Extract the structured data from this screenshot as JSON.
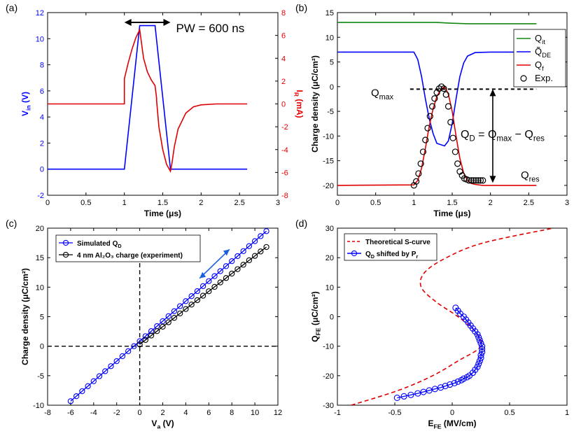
{
  "chart_data": [
    {
      "panel": "(a)",
      "type": "line",
      "xlabel": "Time (μs)",
      "ylabel": "V_in (V)",
      "ylabel_right": "I_R (mA)",
      "xlim": [
        0,
        3
      ],
      "ylim": [
        -2,
        12
      ],
      "ylim_right": [
        -8,
        8
      ],
      "xticks": [
        0,
        0.5,
        1,
        1.5,
        2,
        2.5,
        3
      ],
      "yticks": [
        -2,
        0,
        2,
        4,
        6,
        8,
        10,
        12
      ],
      "yticks_right": [
        -8,
        -6,
        -4,
        -2,
        0,
        2,
        4,
        6,
        8
      ],
      "annotations": [
        {
          "text": "PW = 600 ns"
        }
      ],
      "colors": {
        "left": "#0000ff",
        "right": "#e00000"
      },
      "series": [
        {
          "axis": "left",
          "color": "#0000ff",
          "x": [
            0,
            1.0,
            1.2,
            1.4,
            1.6,
            2.6
          ],
          "y": [
            0,
            0,
            11,
            11,
            0,
            0
          ]
        },
        {
          "axis": "right",
          "color": "#e00000",
          "x": [
            0,
            1.0,
            1.0,
            1.05,
            1.1,
            1.15,
            1.2,
            1.25,
            1.3,
            1.35,
            1.4,
            1.42,
            1.42,
            1.45,
            1.5,
            1.55,
            1.6,
            1.62,
            1.65,
            1.7,
            1.8,
            1.9,
            2.0,
            2.2,
            2.6
          ],
          "y": [
            0,
            0,
            2.2,
            3.6,
            4.8,
            5.8,
            6.5,
            4.0,
            2.8,
            2.1,
            1.6,
            0.5,
            0.3,
            -2.0,
            -4.0,
            -5.3,
            -5.9,
            -5.2,
            -3.8,
            -2.2,
            -0.8,
            -0.25,
            -0.08,
            0,
            0
          ]
        }
      ]
    },
    {
      "panel": "(b)",
      "type": "line",
      "xlabel": "Time (μs)",
      "ylabel": "Charge density (μC/cm²)",
      "xlim": [
        0,
        3
      ],
      "ylim": [
        -22,
        15
      ],
      "xticks": [
        0,
        0.5,
        1,
        1.5,
        2,
        2.5,
        3
      ],
      "yticks": [
        -20,
        -15,
        -10,
        -5,
        0,
        5,
        10,
        15
      ],
      "legend": [
        "Q_it",
        "Q̃_DE",
        "Q_f",
        "Exp."
      ],
      "legend_position": "right",
      "annotations": [
        {
          "text": "Q_max"
        },
        {
          "text": "Q_D = Q_max − Q_res"
        },
        {
          "text": "Q_res"
        }
      ],
      "series": [
        {
          "name": "Q_it",
          "color": "#118811",
          "x": [
            0,
            1.3,
            1.5,
            1.7,
            2.6
          ],
          "y": [
            13,
            13,
            12.85,
            12.75,
            12.75
          ]
        },
        {
          "name": "Q̃_DE",
          "color": "#0000ff",
          "x": [
            0,
            1.0,
            1.05,
            1.1,
            1.15,
            1.2,
            1.25,
            1.3,
            1.4,
            1.45,
            1.5,
            1.55,
            1.6,
            1.65,
            1.7,
            1.8,
            2.0,
            2.6
          ],
          "y": [
            7,
            7,
            5.5,
            2.0,
            -2.5,
            -6.5,
            -9.5,
            -11.5,
            -12.0,
            -11.0,
            -7.5,
            -2.5,
            2.0,
            4.8,
            6.2,
            6.9,
            7,
            7
          ]
        },
        {
          "name": "Q_f",
          "color": "#e00000",
          "x": [
            0,
            1.0,
            1.05,
            1.1,
            1.15,
            1.2,
            1.25,
            1.3,
            1.35,
            1.4,
            1.45,
            1.5,
            1.55,
            1.6,
            1.65,
            1.7,
            1.75,
            1.8,
            1.9,
            2.0,
            2.6
          ],
          "y": [
            -20,
            -19.9,
            -19.0,
            -16.5,
            -12.5,
            -8.0,
            -4.5,
            -2.0,
            -0.6,
            0,
            -1.5,
            -5.0,
            -10.0,
            -14.5,
            -17.5,
            -19.0,
            -19.6,
            -19.8,
            -20,
            -20,
            -20
          ]
        },
        {
          "name": "Exp.",
          "marker": "circle",
          "color": "#000000",
          "x": [
            1.0,
            1.03,
            1.06,
            1.09,
            1.12,
            1.15,
            1.18,
            1.21,
            1.24,
            1.27,
            1.3,
            1.33,
            1.36,
            1.39,
            1.42,
            1.45,
            1.48,
            1.51,
            1.54,
            1.57,
            1.6,
            1.63,
            1.66,
            1.69,
            1.72,
            1.75,
            1.78,
            1.81,
            1.84,
            1.87,
            1.9
          ],
          "y": [
            -20,
            -19.2,
            -17.6,
            -15.6,
            -13.2,
            -10.8,
            -8.4,
            -6.0,
            -4.0,
            -2.4,
            -1.2,
            -0.4,
            0,
            -0.4,
            -1.6,
            -4.0,
            -7.2,
            -10.4,
            -13.2,
            -15.6,
            -17.2,
            -18.0,
            -18.6,
            -18.8,
            -19.0,
            -19.0,
            -19.0,
            -19.0,
            -19.0,
            -19.0,
            -19.0
          ]
        }
      ]
    },
    {
      "panel": "(c)",
      "type": "line",
      "xlabel": "V_a (V)",
      "ylabel": "Charge density (μC/cm²)",
      "xlim": [
        -8,
        12
      ],
      "ylim": [
        -10,
        20
      ],
      "xticks": [
        -8,
        -6,
        -4,
        -2,
        0,
        2,
        4,
        6,
        8,
        10,
        12
      ],
      "yticks": [
        -10,
        -5,
        0,
        5,
        10,
        15,
        20
      ],
      "legend": [
        "Simulated Q_D",
        "4 nm Al₂O₃ charge (experiment)"
      ],
      "legend_position": "top-left",
      "series": [
        {
          "name": "Simulated Q_D",
          "color": "#0000ff",
          "marker": "circle",
          "x_start": -6,
          "x_end": 11,
          "step": 0.5,
          "slope": 1.695,
          "intercept": 0.85
        },
        {
          "name": "4 nm Al₂O₃ charge (experiment)",
          "color": "#000000",
          "marker": "circle",
          "x_start": 0,
          "x_end": 11,
          "step": 0.5,
          "slope": 1.5,
          "intercept": 0.3
        }
      ]
    },
    {
      "panel": "(d)",
      "type": "line",
      "xlabel": "E_FE (MV/cm)",
      "ylabel": "Q_FE (μC/cm²)",
      "xlim": [
        -1,
        1
      ],
      "ylim": [
        -30,
        30
      ],
      "xticks": [
        -1,
        -0.5,
        0,
        0.5,
        1
      ],
      "yticks": [
        -30,
        -20,
        -10,
        0,
        10,
        20,
        30
      ],
      "legend": [
        "Theoretical S-curve",
        "Q_D shifted by P_r"
      ],
      "legend_position": "top-left",
      "series": [
        {
          "name": "Theoretical S-curve",
          "color": "#e00000",
          "dashed": true,
          "Q": [
            -30,
            -25,
            -20,
            -15,
            -10,
            -5,
            0,
            5,
            10,
            15,
            20,
            25,
            30
          ],
          "E": [
            -0.88,
            -0.47,
            -0.17,
            0.05,
            0.25,
            0.2,
            0.05,
            -0.14,
            -0.27,
            -0.24,
            -0.05,
            0.27,
            0.88
          ]
        },
        {
          "name": "Q_D shifted by P_r",
          "color": "#0000ff",
          "marker": "circle",
          "Q": [
            -27.5,
            -27.0,
            -26.5,
            -26.0,
            -25.5,
            -25.0,
            -24.5,
            -24.0,
            -23.5,
            -23.0,
            -22.5,
            -22.0,
            -21.5,
            -21.0,
            -20.5,
            -20.0,
            -19.0,
            -18.0,
            -17.0,
            -16.0,
            -15.0,
            -14.0,
            -13.0,
            -12.0,
            -11.0,
            -10.0,
            -9.0,
            -8.0,
            -7.0,
            -6.0,
            -5.0,
            -4.0,
            -3.0,
            -2.0,
            -1.0,
            0.0,
            1.0,
            2.0,
            3.0
          ],
          "E": [
            -0.48,
            -0.42,
            -0.36,
            -0.3,
            -0.25,
            -0.2,
            -0.15,
            -0.1,
            -0.06,
            -0.02,
            0.02,
            0.05,
            0.08,
            0.1,
            0.13,
            0.15,
            0.18,
            0.2,
            0.22,
            0.23,
            0.24,
            0.25,
            0.25,
            0.26,
            0.26,
            0.26,
            0.25,
            0.24,
            0.23,
            0.22,
            0.2,
            0.18,
            0.16,
            0.14,
            0.12,
            0.1,
            0.07,
            0.05,
            0.03
          ]
        }
      ]
    }
  ]
}
